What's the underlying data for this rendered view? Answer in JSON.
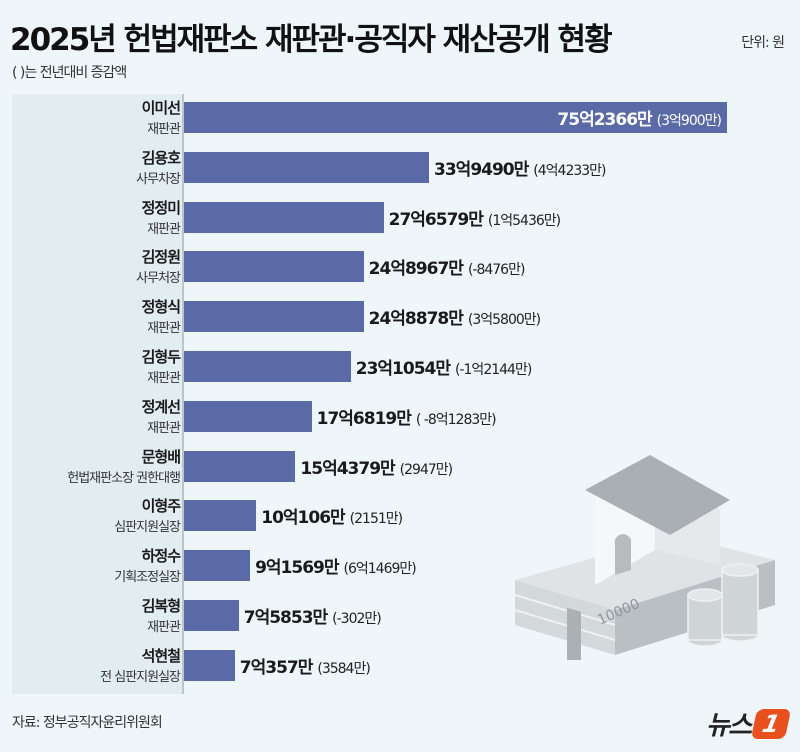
{
  "header": {
    "title": "2025년 헌법재판소 재판관·공직자 재산공개 현황",
    "unit": "단위: 원",
    "subtitle": "( )는 전년대비 증감액"
  },
  "footer": {
    "source": "자료: 정부공직자윤리위원회",
    "logo_text": "뉴스",
    "logo_mark": "1"
  },
  "colors": {
    "bar": "#5a6aa7",
    "background": "#eef6f9",
    "logo": "#e8501e"
  },
  "chart_data": {
    "type": "bar",
    "orientation": "horizontal",
    "unit": "억원",
    "xlim": [
      0,
      75.2366
    ],
    "grid": false,
    "categories": [
      {
        "name": "이미선",
        "role": "재판관"
      },
      {
        "name": "김용호",
        "role": "사무차장"
      },
      {
        "name": "정정미",
        "role": "재판관"
      },
      {
        "name": "김정원",
        "role": "사무처장"
      },
      {
        "name": "정형식",
        "role": "재판관"
      },
      {
        "name": "김형두",
        "role": "재판관"
      },
      {
        "name": "정계선",
        "role": "재판관"
      },
      {
        "name": "문형배",
        "role": "헌법재판소장 권한대행"
      },
      {
        "name": "이형주",
        "role": "심판지원실장"
      },
      {
        "name": "하정수",
        "role": "기획조정실장"
      },
      {
        "name": "김복형",
        "role": "재판관"
      },
      {
        "name": "석현철",
        "role": "전 심판지원실장"
      }
    ],
    "values": [
      75.2366,
      33.949,
      27.6579,
      24.8967,
      24.8878,
      23.1054,
      17.6819,
      15.4379,
      10.0106,
      9.1569,
      7.5853,
      7.0357
    ],
    "value_labels": [
      "75억2366만",
      "33억9490만",
      "27억6579만",
      "24억8967만",
      "24억8878만",
      "23억1054만",
      "17억6819만",
      "15억4379만",
      "10억106만",
      "9억1569만",
      "7억5853만",
      "7억357만"
    ],
    "change_labels": [
      "(3억900만)",
      "(4억4233만)",
      "(1억5436만)",
      "(-8476만)",
      "(3억5800만)",
      "(-1억2144만)",
      "( -8억1283만)",
      "(2947만)",
      "(2151만)",
      "(6억1469만)",
      "(-302만)",
      "(3584만)"
    ]
  }
}
